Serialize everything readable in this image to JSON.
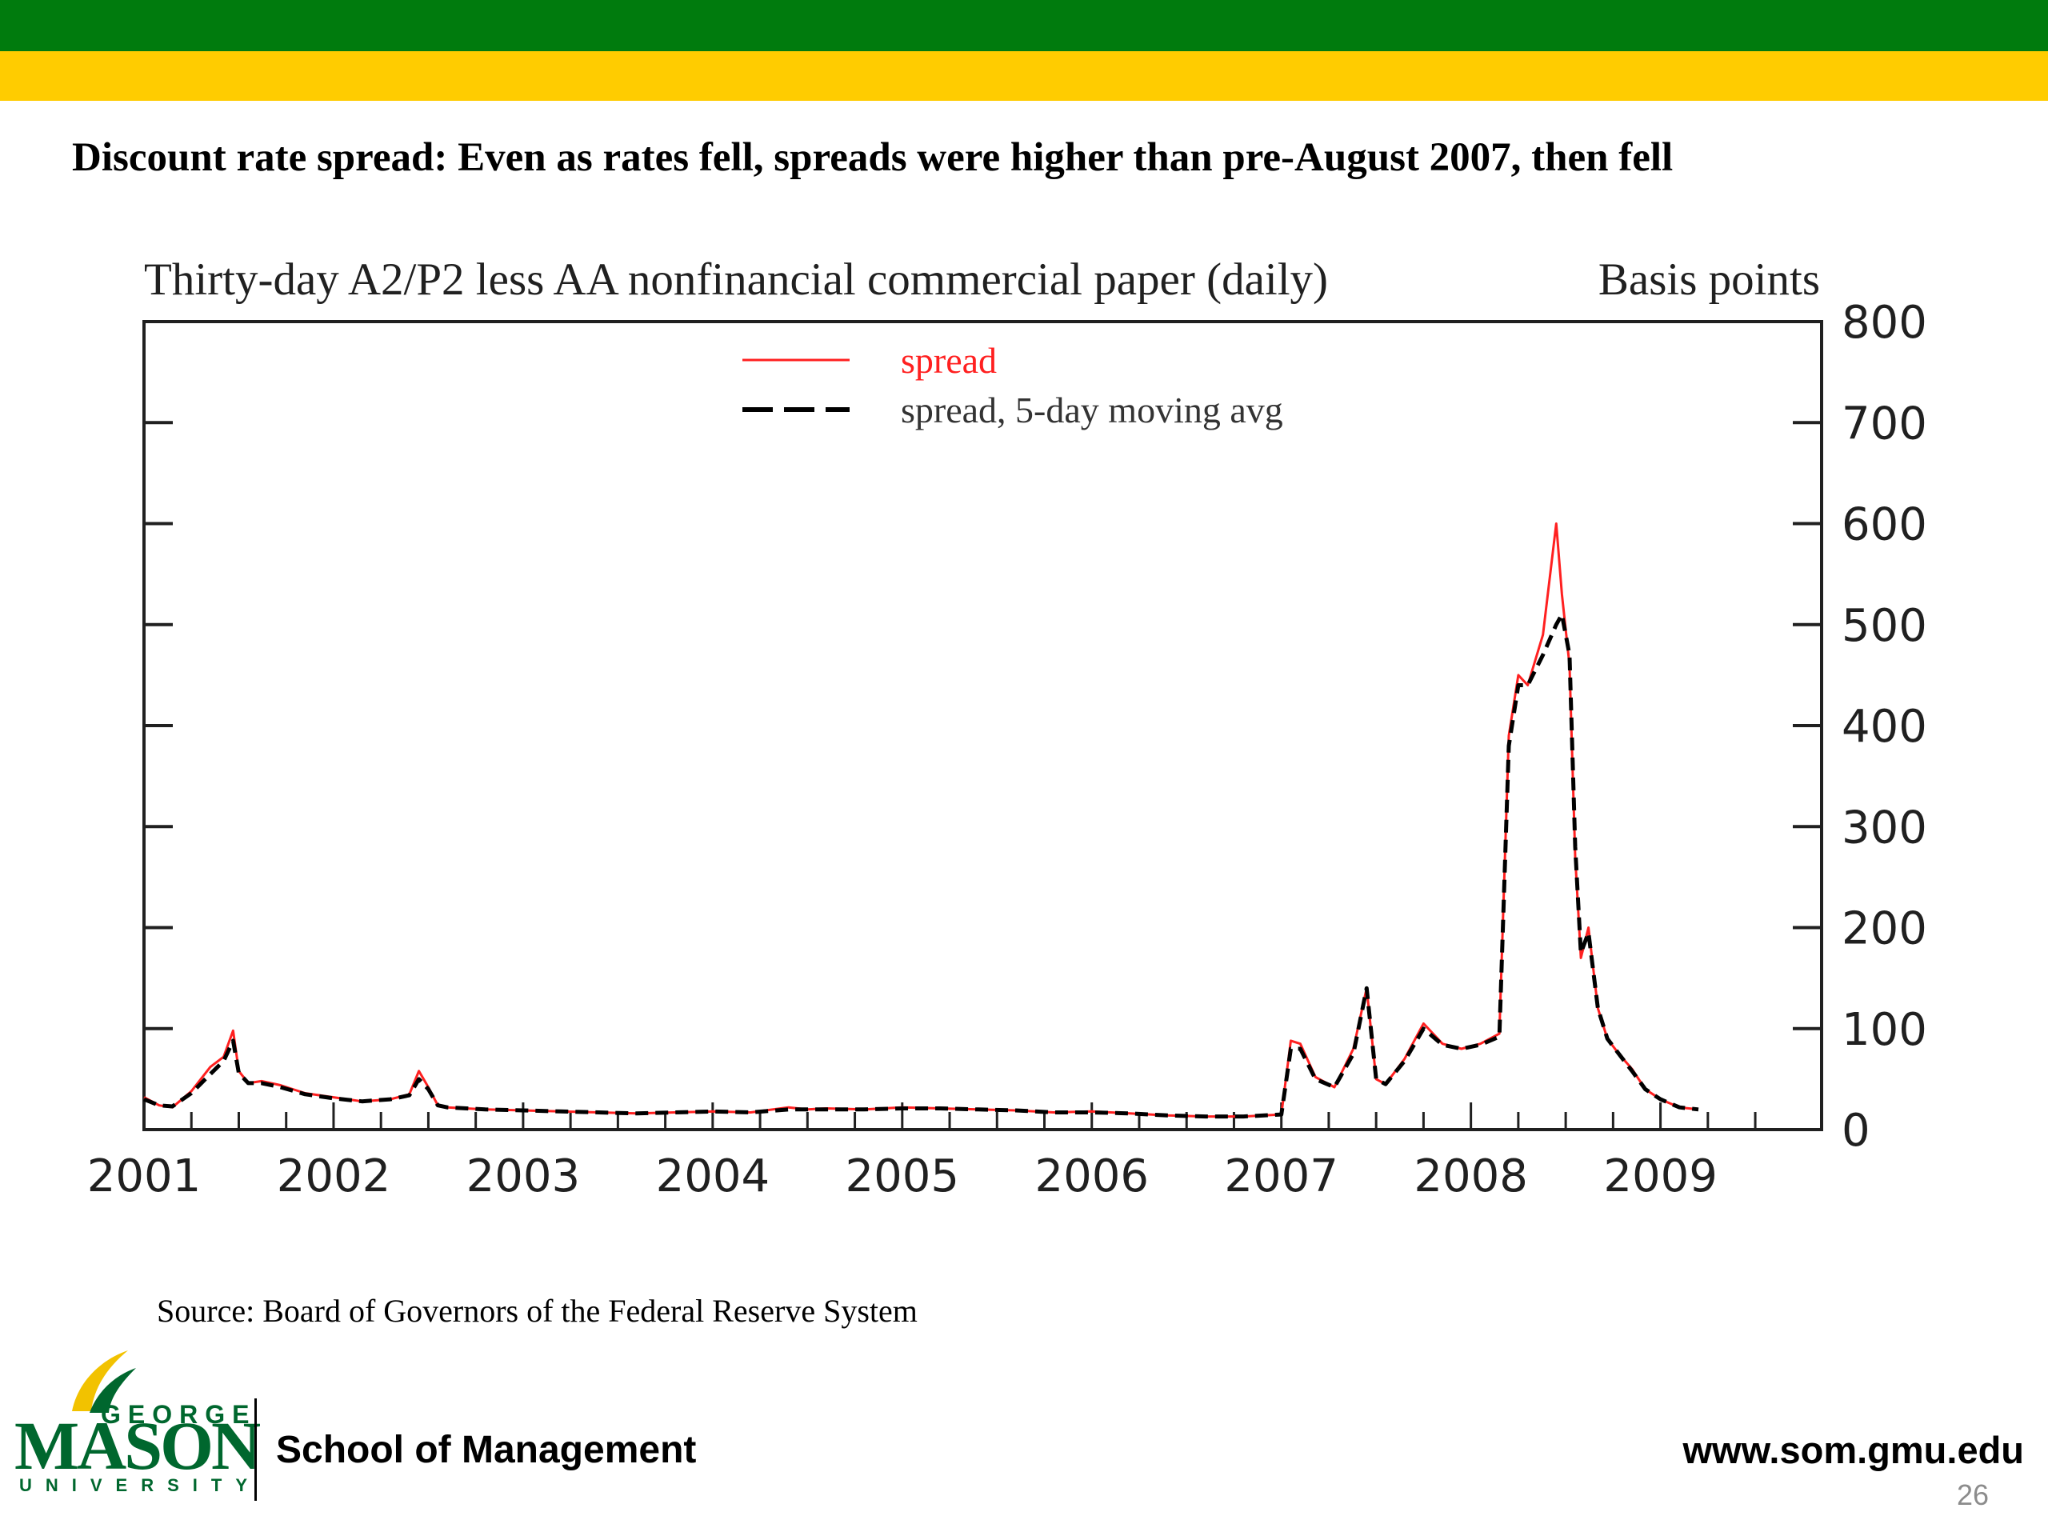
{
  "slide": {
    "title": "Discount rate spread: Even as rates fell, spreads were higher than pre-August 2007, then fell",
    "source": "Source: Board of Governors of the Federal Reserve System",
    "page_number": "26",
    "colors": {
      "band_top": "#007b0d",
      "band_bottom": "#ffcc00",
      "logo_green": "#00672e",
      "logo_gold": "#f2c200"
    }
  },
  "footer": {
    "logo": {
      "line1": "GEORGE",
      "line2": "MASON",
      "line3": "UNIVERSITY"
    },
    "school": "School of Management",
    "website": "www.som.gmu.edu"
  },
  "chart_data": {
    "type": "line",
    "title": "Thirty-day A2/P2 less AA nonfinancial commercial paper (daily)",
    "ylabel": "Basis points",
    "xlabel": "",
    "x_ticks": [
      "2001",
      "2002",
      "2003",
      "2004",
      "2005",
      "2006",
      "2007",
      "2008",
      "2009"
    ],
    "xlim": [
      2001.0,
      2009.85
    ],
    "ylim": [
      0,
      800
    ],
    "y_ticks": [
      0,
      100,
      200,
      300,
      400,
      500,
      600,
      700,
      800
    ],
    "y_axis_side": "right",
    "grid": false,
    "legend": "top-center",
    "series": [
      {
        "name": "spread",
        "color": "#ff2020",
        "style": "solid",
        "x": [
          2001.0,
          2001.08,
          2001.15,
          2001.25,
          2001.35,
          2001.42,
          2001.47,
          2001.5,
          2001.55,
          2001.62,
          2001.72,
          2001.85,
          2002.0,
          2002.15,
          2002.3,
          2002.4,
          2002.45,
          2002.5,
          2002.55,
          2002.6,
          2002.8,
          2003.0,
          2003.2,
          2003.4,
          2003.6,
          2003.8,
          2004.0,
          2004.2,
          2004.4,
          2004.5,
          2004.6,
          2004.8,
          2005.0,
          2005.2,
          2005.4,
          2005.6,
          2005.8,
          2006.0,
          2006.2,
          2006.4,
          2006.6,
          2006.8,
          2007.0,
          2007.05,
          2007.1,
          2007.18,
          2007.28,
          2007.38,
          2007.45,
          2007.5,
          2007.55,
          2007.65,
          2007.75,
          2007.85,
          2007.95,
          2008.05,
          2008.15,
          2008.2,
          2008.25,
          2008.3,
          2008.38,
          2008.45,
          2008.48,
          2008.52,
          2008.55,
          2008.58,
          2008.62,
          2008.67,
          2008.72,
          2008.78,
          2008.85,
          2008.92,
          2009.0,
          2009.1,
          2009.2
        ],
        "y": [
          32,
          24,
          22,
          38,
          62,
          72,
          98,
          58,
          46,
          48,
          44,
          36,
          32,
          28,
          30,
          35,
          58,
          42,
          24,
          22,
          20,
          19,
          18,
          17,
          16,
          17,
          18,
          17,
          22,
          20,
          21,
          20,
          22,
          21,
          20,
          19,
          17,
          18,
          16,
          14,
          13,
          13,
          15,
          88,
          85,
          52,
          42,
          80,
          140,
          50,
          45,
          70,
          105,
          85,
          80,
          85,
          95,
          390,
          450,
          440,
          490,
          600,
          530,
          460,
          270,
          170,
          200,
          120,
          90,
          75,
          60,
          40,
          30,
          22,
          20
        ]
      },
      {
        "name": "spread, 5-day moving avg",
        "color": "#000000",
        "style": "dashed",
        "x": [
          2001.0,
          2001.08,
          2001.15,
          2001.25,
          2001.35,
          2001.42,
          2001.47,
          2001.5,
          2001.55,
          2001.62,
          2001.72,
          2001.85,
          2002.0,
          2002.15,
          2002.3,
          2002.4,
          2002.45,
          2002.5,
          2002.55,
          2002.6,
          2002.8,
          2003.0,
          2003.2,
          2003.4,
          2003.6,
          2003.8,
          2004.0,
          2004.2,
          2004.4,
          2004.5,
          2004.6,
          2004.8,
          2005.0,
          2005.2,
          2005.4,
          2005.6,
          2005.8,
          2006.0,
          2006.2,
          2006.4,
          2006.6,
          2006.8,
          2007.0,
          2007.05,
          2007.1,
          2007.18,
          2007.28,
          2007.38,
          2007.45,
          2007.5,
          2007.55,
          2007.65,
          2007.75,
          2007.85,
          2007.95,
          2008.05,
          2008.15,
          2008.2,
          2008.25,
          2008.3,
          2008.38,
          2008.45,
          2008.48,
          2008.52,
          2008.55,
          2008.58,
          2008.62,
          2008.67,
          2008.72,
          2008.78,
          2008.85,
          2008.92,
          2009.0,
          2009.1,
          2009.2
        ],
        "y": [
          30,
          24,
          23,
          36,
          55,
          68,
          88,
          56,
          46,
          46,
          42,
          35,
          31,
          28,
          30,
          34,
          50,
          40,
          24,
          22,
          20,
          19,
          18,
          17,
          16,
          17,
          18,
          17,
          20,
          20,
          20,
          20,
          21,
          21,
          20,
          19,
          17,
          17,
          16,
          14,
          13,
          13,
          15,
          80,
          80,
          50,
          42,
          75,
          140,
          50,
          45,
          68,
          100,
          84,
          80,
          84,
          92,
          380,
          440,
          440,
          470,
          500,
          510,
          470,
          280,
          175,
          195,
          120,
          90,
          75,
          58,
          40,
          30,
          22,
          20
        ]
      }
    ]
  }
}
